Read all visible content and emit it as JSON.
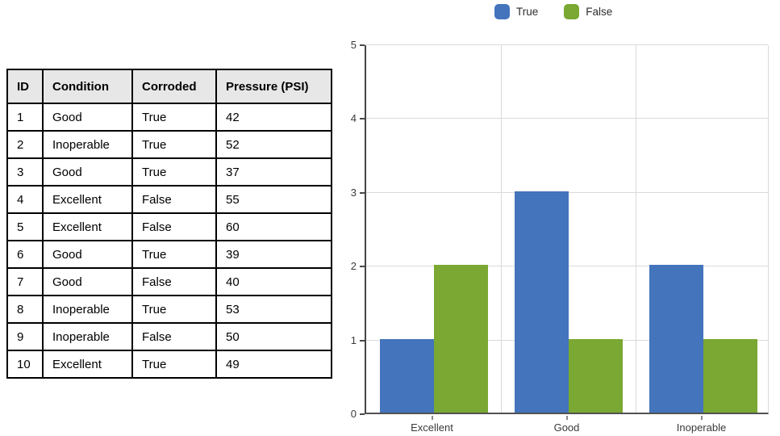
{
  "page": {
    "background": "#ffffff"
  },
  "table": {
    "headers": [
      "ID",
      "Condition",
      "Corroded",
      "Pressure (PSI)"
    ],
    "rows": [
      [
        "1",
        "Good",
        "True",
        "42"
      ],
      [
        "2",
        "Inoperable",
        "True",
        "52"
      ],
      [
        "3",
        "Good",
        "True",
        "37"
      ],
      [
        "4",
        "Excellent",
        "False",
        "55"
      ],
      [
        "5",
        "Excellent",
        "False",
        "60"
      ],
      [
        "6",
        "Good",
        "True",
        "39"
      ],
      [
        "7",
        "Good",
        "False",
        "40"
      ],
      [
        "8",
        "Inoperable",
        "True",
        "53"
      ],
      [
        "9",
        "Inoperable",
        "False",
        "50"
      ],
      [
        "10",
        "Excellent",
        "True",
        "49"
      ]
    ],
    "header_bg": "#e7e7e7",
    "border_color": "#000000"
  },
  "chart_data": {
    "type": "bar",
    "title": "",
    "xlabel": "",
    "ylabel": "",
    "categories": [
      "Excellent",
      "Good",
      "Inoperable"
    ],
    "series": [
      {
        "name": "True",
        "color": "#4374bc",
        "values": [
          1,
          3,
          2
        ]
      },
      {
        "name": "False",
        "color": "#7aa832",
        "values": [
          2,
          1,
          1
        ]
      }
    ],
    "ylim": [
      0,
      5
    ],
    "yticks": [
      0,
      1,
      2,
      3,
      4,
      5
    ],
    "grid": true,
    "legend_position": "top",
    "gridline_color": "#dadada",
    "axis_color": "#4a4a4a",
    "label_color": "#3a3a3a"
  }
}
